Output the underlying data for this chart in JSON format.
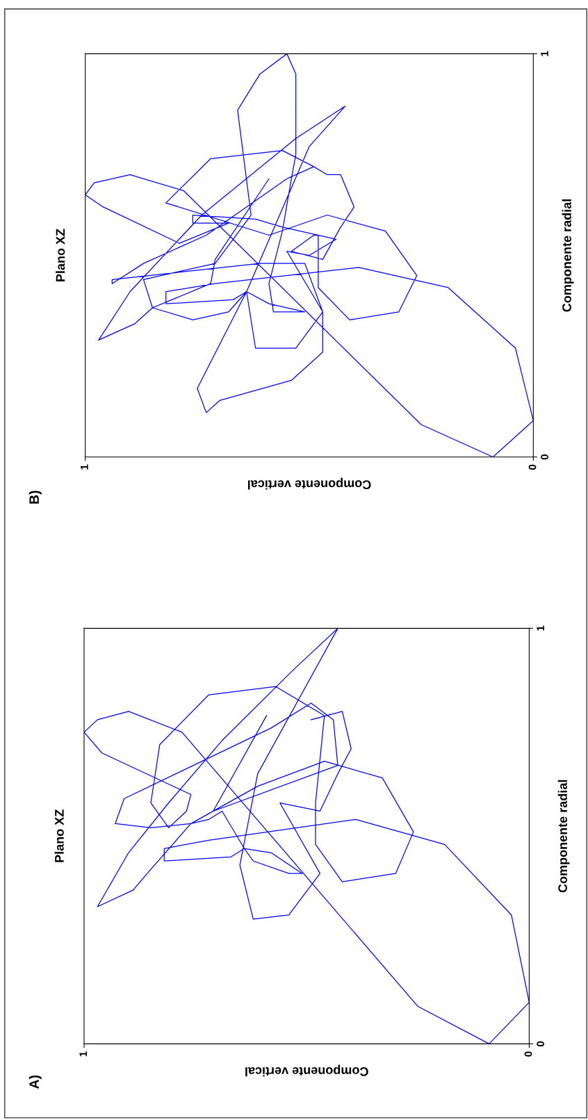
{
  "chart_data": [
    {
      "type": "line",
      "title": "Plano XZ",
      "xlabel": "Componente vertical",
      "ylabel": "Componente radial",
      "annotations": [
        "B)"
      ],
      "xlim": [
        1,
        0
      ],
      "ylim": [
        0,
        1
      ],
      "xticks": [
        1,
        0
      ],
      "yticks": [
        0,
        1
      ],
      "grid": false,
      "legend": false,
      "marker": "none",
      "line_style": "solid",
      "x": [
        0.59,
        0.71,
        0.72,
        0.85,
        0.89,
        0.97,
        0.9,
        0.74,
        0.53,
        0.42,
        0.5,
        0.64,
        0.75,
        0.73,
        0.7,
        0.54,
        0.47,
        0.47,
        0.55,
        0.5,
        0.44,
        0.56,
        0.62,
        0.76,
        0.76,
        0.68,
        0.79,
        0.96,
        1.0,
        0.98,
        0.9,
        0.78,
        0.25,
        0.09,
        0.0,
        0.04,
        0.19,
        0.39,
        0.71,
        0.82,
        0.82,
        0.67,
        0.64,
        0.59,
        0.51,
        0.54,
        0.58,
        0.59,
        0.56,
        0.54,
        0.53,
        0.53,
        0.55,
        0.61,
        0.66,
        0.63,
        0.71,
        0.87,
        0.85,
        0.76,
        0.68,
        0.64,
        0.62,
        0.53,
        0.47,
        0.51,
        0.61,
        0.94,
        0.94,
        0.87,
        0.73,
        0.55,
        0.49,
        0.46,
        0.43,
        0.4,
        0.43,
        0.47,
        0.54,
        0.49,
        0.48,
        0.48,
        0.41,
        0.3,
        0.26,
        0.33,
        0.46,
        0.59,
        0.82,
        0.72,
        0.56,
        0.49
      ],
      "series": [
        {
          "color": "#0000ff",
          "values": [
            0.69,
            0.49,
            0.43,
            0.37,
            0.33,
            0.29,
            0.41,
            0.6,
            0.79,
            0.87,
            0.77,
            0.41,
            0.17,
            0.11,
            0.14,
            0.19,
            0.26,
            0.36,
            0.51,
            0.5,
            0.54,
            0.57,
            0.59,
            0.6,
            0.58,
            0.58,
            0.53,
            0.62,
            0.65,
            0.68,
            0.7,
            0.66,
            0.08,
            0.0,
            0.09,
            0.27,
            0.42,
            0.47,
            0.43,
            0.41,
            0.38,
            0.39,
            0.41,
            0.38,
            0.36,
            0.36,
            0.36,
            0.43,
            0.56,
            0.69,
            0.75,
            0.95,
            1.0,
            0.95,
            0.86,
            0.6,
            0.48,
            0.44,
            0.37,
            0.34,
            0.36,
            0.41,
            0.27,
            0.27,
            0.36,
            0.48,
            0.48,
            0.44,
            0.43,
            0.48,
            0.55,
            0.69,
            0.72,
            0.7,
            0.7,
            0.62,
            0.57,
            0.49,
            0.51,
            0.55,
            0.55,
            0.42,
            0.34,
            0.36,
            0.45,
            0.56,
            0.6,
            0.55,
            0.63,
            0.74,
            0.76,
            0.72
          ]
        }
      ]
    },
    {
      "type": "line",
      "title": "Plano XZ",
      "xlabel": "Componente vertical",
      "ylabel": "Componente radial",
      "annotations": [
        "A)"
      ],
      "xlim": [
        1,
        0
      ],
      "ylim": [
        0,
        1
      ],
      "xticks": [
        1,
        0
      ],
      "yticks": [
        0,
        1
      ],
      "grid": false,
      "legend": false,
      "marker": "none",
      "line_style": "solid",
      "x": [
        0.49,
        0.42,
        0.4,
        0.43,
        0.47,
        0.56,
        0.47,
        0.54,
        0.62,
        0.65,
        0.61,
        0.43,
        0.53,
        0.69,
        0.81,
        0.9,
        0.97,
        0.89,
        0.85,
        0.76,
        0.72,
        0.69,
        0.64,
        0.62,
        0.54,
        0.51,
        0.58,
        0.64,
        0.67,
        0.82,
        0.82,
        0.72,
        0.39,
        0.19,
        0.04,
        0.0,
        0.09,
        0.25,
        0.78,
        0.9,
        0.97,
        1.0,
        0.96,
        0.76,
        0.77,
        0.81,
        0.85,
        0.83,
        0.72,
        0.57,
        0.46,
        0.48,
        0.48,
        0.42,
        0.3,
        0.26,
        0.33,
        0.46,
        0.61,
        0.76,
        0.85,
        0.93,
        0.91,
        0.58,
        0.49,
        0.44,
        0.43,
        0.71,
        0.59
      ],
      "series": [
        {
          "color": "#0000ff",
          "values": [
            0.78,
            0.8,
            0.71,
            0.65,
            0.56,
            0.58,
            0.41,
            0.31,
            0.3,
            0.43,
            0.65,
            1.0,
            0.9,
            0.73,
            0.58,
            0.46,
            0.33,
            0.37,
            0.42,
            0.53,
            0.54,
            0.56,
            0.47,
            0.44,
            0.41,
            0.41,
            0.46,
            0.47,
            0.45,
            0.44,
            0.47,
            0.49,
            0.54,
            0.48,
            0.31,
            0.1,
            0.0,
            0.09,
            0.75,
            0.8,
            0.78,
            0.75,
            0.7,
            0.6,
            0.56,
            0.52,
            0.58,
            0.72,
            0.84,
            0.86,
            0.79,
            0.58,
            0.48,
            0.39,
            0.41,
            0.51,
            0.64,
            0.68,
            0.62,
            0.53,
            0.52,
            0.53,
            0.59,
            0.76,
            0.82,
            0.78,
            0.67,
            0.56,
            0.79
          ]
        }
      ]
    }
  ]
}
